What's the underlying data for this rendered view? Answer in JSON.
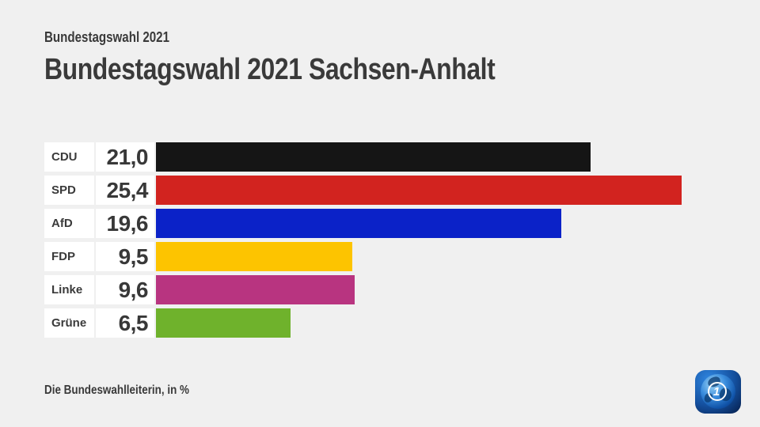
{
  "header": {
    "kicker": "Bundestagswahl 2021",
    "title": "Bundestagswahl 2021 Sachsen-Anhalt"
  },
  "footer": {
    "source": "Die Bundeswahlleiterin, in %"
  },
  "logo": {
    "glyph": "1"
  },
  "colors": {
    "background": "#f0f0f0",
    "cell_background": "#ffffff",
    "text": "#3a3a3a"
  },
  "chart_data": {
    "type": "bar",
    "orientation": "horizontal",
    "title": "Bundestagswahl 2021 Sachsen-Anhalt",
    "unit": "%",
    "categories": [
      "CDU",
      "SPD",
      "AfD",
      "FDP",
      "Linke",
      "Grüne"
    ],
    "values": [
      21.0,
      25.4,
      19.6,
      9.5,
      9.6,
      6.5
    ],
    "value_labels": [
      "21,0",
      "25,4",
      "19,6",
      "9,5",
      "9,6",
      "6,5"
    ],
    "bar_colors": [
      "#151515",
      "#d2231f",
      "#0b22c8",
      "#fdc400",
      "#b83480",
      "#6fb22c"
    ],
    "xlim": [
      0,
      27.1
    ],
    "grid": false,
    "legend": false
  }
}
